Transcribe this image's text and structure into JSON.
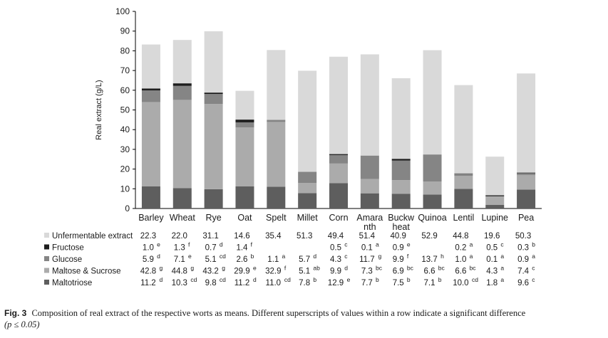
{
  "chart_data": {
    "type": "bar",
    "stacked": true,
    "ylabel": "Real extract (g/L)",
    "ylim": [
      0,
      100
    ],
    "yticks": [
      0,
      10,
      20,
      30,
      40,
      50,
      60,
      70,
      80,
      90,
      100
    ],
    "grid": false,
    "legend": "left, in data table below chart",
    "categories": [
      "Barley",
      "Wheat",
      "Rye",
      "Oat",
      "Spelt",
      "Millet",
      "Corn",
      "Amara\nnth",
      "Buckw\nheat",
      "Quinoa",
      "Lentil",
      "Lupine",
      "Pea"
    ],
    "series": [
      {
        "name": "Maltotriose",
        "color": "#5e5e5e",
        "values": [
          11.2,
          10.3,
          9.8,
          11.2,
          11.0,
          7.8,
          12.9,
          7.7,
          7.5,
          7.1,
          10.0,
          1.8,
          9.6
        ],
        "labels": [
          "11.2",
          "10.3",
          "9.8",
          "11.2",
          "11.0",
          "7.8",
          "12.9",
          "7.7",
          "7.5",
          "7.1",
          "10.0",
          "1.8",
          "9.6"
        ],
        "sig": [
          "d",
          "cd",
          "cd",
          "d",
          "cd",
          "b",
          "e",
          "b",
          "b",
          "b",
          "cd",
          "a",
          "c"
        ]
      },
      {
        "name": "Maltose & Sucrose",
        "color": "#ababab",
        "values": [
          42.8,
          44.8,
          43.2,
          29.9,
          32.9,
          5.1,
          9.9,
          7.3,
          6.9,
          6.6,
          6.6,
          4.3,
          7.4
        ],
        "labels": [
          "42.8",
          "44.8",
          "43.2",
          "29.9",
          "32.9",
          "5.1",
          "9.9",
          "7.3",
          "6.9",
          "6.6",
          "6.6",
          "4.3",
          "7.4"
        ],
        "sig": [
          "g",
          "g",
          "g",
          "e",
          "f",
          "ab",
          "d",
          "bc",
          "bc",
          "bc",
          "bc",
          "a",
          "c"
        ]
      },
      {
        "name": "Glucose",
        "color": "#858585",
        "values": [
          5.9,
          7.1,
          5.1,
          2.6,
          1.1,
          5.7,
          4.3,
          11.7,
          9.9,
          13.7,
          1.0,
          0.1,
          0.9
        ],
        "labels": [
          "5.9",
          "7.1",
          "5.1",
          "2.6",
          "1.1",
          "5.7",
          "4.3",
          "11.7",
          "9.9",
          "13.7",
          "1.0",
          "0.1",
          "0.9"
        ],
        "sig": [
          "d",
          "e",
          "cd",
          "b",
          "a",
          "d",
          "c",
          "g",
          "f",
          "h",
          "a",
          "a",
          "a"
        ]
      },
      {
        "name": "Fructose",
        "color": "#1e1e1e",
        "values": [
          1.0,
          1.3,
          0.7,
          1.4,
          0.0,
          0.0,
          0.5,
          0.1,
          0.9,
          0.0,
          0.2,
          0.5,
          0.3
        ],
        "labels": [
          "1.0",
          "1.3",
          "0.7",
          "1.4",
          "",
          "",
          "0.5",
          "0.1",
          "0.9",
          "",
          "0.2",
          "0.5",
          "0.3"
        ],
        "sig": [
          "e",
          "f",
          "d",
          "f",
          "",
          "",
          "c",
          "a",
          "e",
          "",
          "a",
          "c",
          "b"
        ]
      },
      {
        "name": "Unfermentable extract",
        "color": "#d9d9d9",
        "values": [
          22.3,
          22.0,
          31.1,
          14.6,
          35.4,
          51.3,
          49.4,
          51.4,
          40.9,
          52.9,
          44.8,
          19.6,
          50.3
        ],
        "labels": [
          "22.3",
          "22.0",
          "31.1",
          "14.6",
          "35.4",
          "51.3",
          "49.4",
          "51.4",
          "40.9",
          "52.9",
          "44.8",
          "19.6",
          "50.3"
        ],
        "sig": [
          "",
          "",
          "",
          "",
          "",
          "",
          "",
          "",
          "",
          "",
          "",
          "",
          ""
        ]
      }
    ],
    "table_row_order": [
      "Unfermentable extract",
      "Fructose",
      "Glucose",
      "Maltose & Sucrose",
      "Maltotriose"
    ]
  },
  "caption": {
    "label": "Fig. 3",
    "text": "Composition of real extract of the respective worts as means. Different superscripts of values within a row indicate a significant difference",
    "p_note": "(p ≤ 0.05)"
  }
}
